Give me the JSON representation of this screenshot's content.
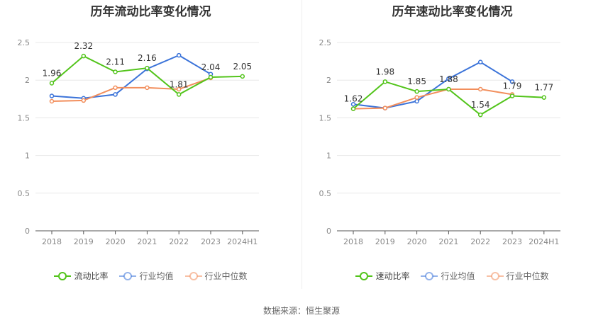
{
  "source_text": "数据来源：恒生聚源",
  "chart_data": [
    {
      "type": "line",
      "title": "历年流动比率变化情况",
      "categories": [
        "2018",
        "2019",
        "2020",
        "2021",
        "2022",
        "2023",
        "2024H1"
      ],
      "ylim": [
        0,
        2.5
      ],
      "yticks": [
        "0",
        "0.5",
        "1",
        "1.5",
        "2",
        "2.5"
      ],
      "grid": true,
      "legend_position": "bottom",
      "series": [
        {
          "name": "流动比率",
          "color": "#52c41a",
          "labeled": true,
          "labels": [
            "1.96",
            "2.32",
            "2.11",
            "2.16",
            "1.81",
            "2.04",
            "2.05"
          ],
          "values": [
            1.96,
            2.32,
            2.11,
            2.16,
            1.81,
            2.04,
            2.05
          ]
        },
        {
          "name": "行业均值",
          "color": "#3b73d9",
          "labeled": false,
          "values": [
            1.79,
            1.76,
            1.81,
            2.15,
            2.33,
            2.08,
            null
          ]
        },
        {
          "name": "行业中位数",
          "color": "#f28e5c",
          "labeled": false,
          "values": [
            1.72,
            1.73,
            1.9,
            1.9,
            1.88,
            2.03,
            null
          ]
        }
      ]
    },
    {
      "type": "line",
      "title": "历年速动比率变化情况",
      "categories": [
        "2018",
        "2019",
        "2020",
        "2021",
        "2022",
        "2023",
        "2024H1"
      ],
      "ylim": [
        0,
        2.5
      ],
      "yticks": [
        "0",
        "0.5",
        "1",
        "1.5",
        "2",
        "2.5"
      ],
      "grid": true,
      "legend_position": "bottom",
      "series": [
        {
          "name": "速动比率",
          "color": "#52c41a",
          "labeled": true,
          "labels": [
            "1.62",
            "1.98",
            "1.85",
            "1.88",
            "1.54",
            "1.79",
            "1.77"
          ],
          "values": [
            1.62,
            1.98,
            1.85,
            1.88,
            1.54,
            1.79,
            1.77
          ]
        },
        {
          "name": "行业均值",
          "color": "#3b73d9",
          "labeled": false,
          "values": [
            1.68,
            1.63,
            1.72,
            2.02,
            2.24,
            1.98,
            null
          ]
        },
        {
          "name": "行业中位数",
          "color": "#f28e5c",
          "labeled": false,
          "values": [
            1.62,
            1.63,
            1.77,
            1.88,
            1.88,
            1.81,
            null
          ]
        }
      ]
    }
  ]
}
